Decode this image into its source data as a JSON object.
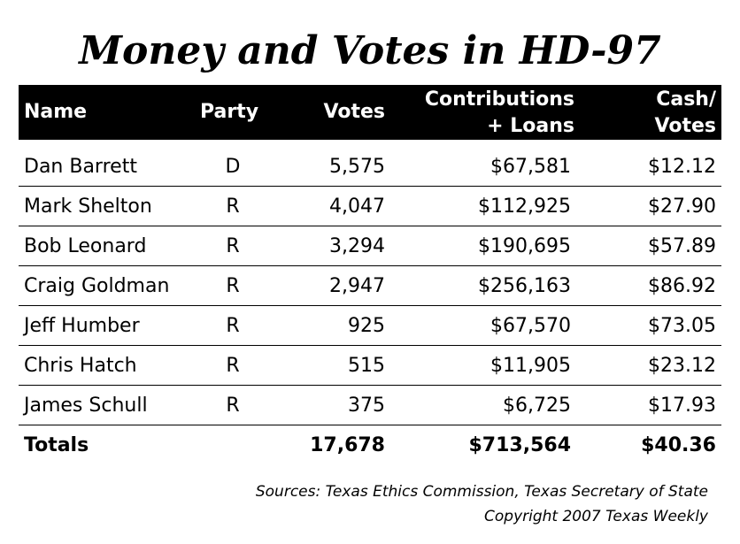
{
  "title": "Money and Votes in HD-97",
  "headers": {
    "name": "Name",
    "party": "Party",
    "votes": "Votes",
    "contrib_line1": "Contributions",
    "contrib_line2": "+ Loans",
    "cash_line1": "Cash/",
    "cash_line2": "Votes"
  },
  "rows": [
    {
      "name": "Dan Barrett",
      "party": "D",
      "votes": "5,575",
      "contributions": "$67,581",
      "cash_per_vote": "$12.12"
    },
    {
      "name": "Mark Shelton",
      "party": "R",
      "votes": "4,047",
      "contributions": "$112,925",
      "cash_per_vote": "$27.90"
    },
    {
      "name": "Bob Leonard",
      "party": "R",
      "votes": "3,294",
      "contributions": "$190,695",
      "cash_per_vote": "$57.89"
    },
    {
      "name": "Craig Goldman",
      "party": "R",
      "votes": "2,947",
      "contributions": "$256,163",
      "cash_per_vote": "$86.92"
    },
    {
      "name": "Jeff Humber",
      "party": "R",
      "votes": "925",
      "contributions": "$67,570",
      "cash_per_vote": "$73.05"
    },
    {
      "name": "Chris Hatch",
      "party": "R",
      "votes": "515",
      "contributions": "$11,905",
      "cash_per_vote": "$23.12"
    },
    {
      "name": "James Schull",
      "party": "R",
      "votes": "375",
      "contributions": "$6,725",
      "cash_per_vote": "$17.93"
    }
  ],
  "totals": {
    "label": "Totals",
    "votes": "17,678",
    "contributions": "$713,564",
    "cash_per_vote": "$40.36"
  },
  "sources": "Sources: Texas Ethics Commission, Texas Secretary of State",
  "copyright": "Copyright 2007 Texas Weekly"
}
